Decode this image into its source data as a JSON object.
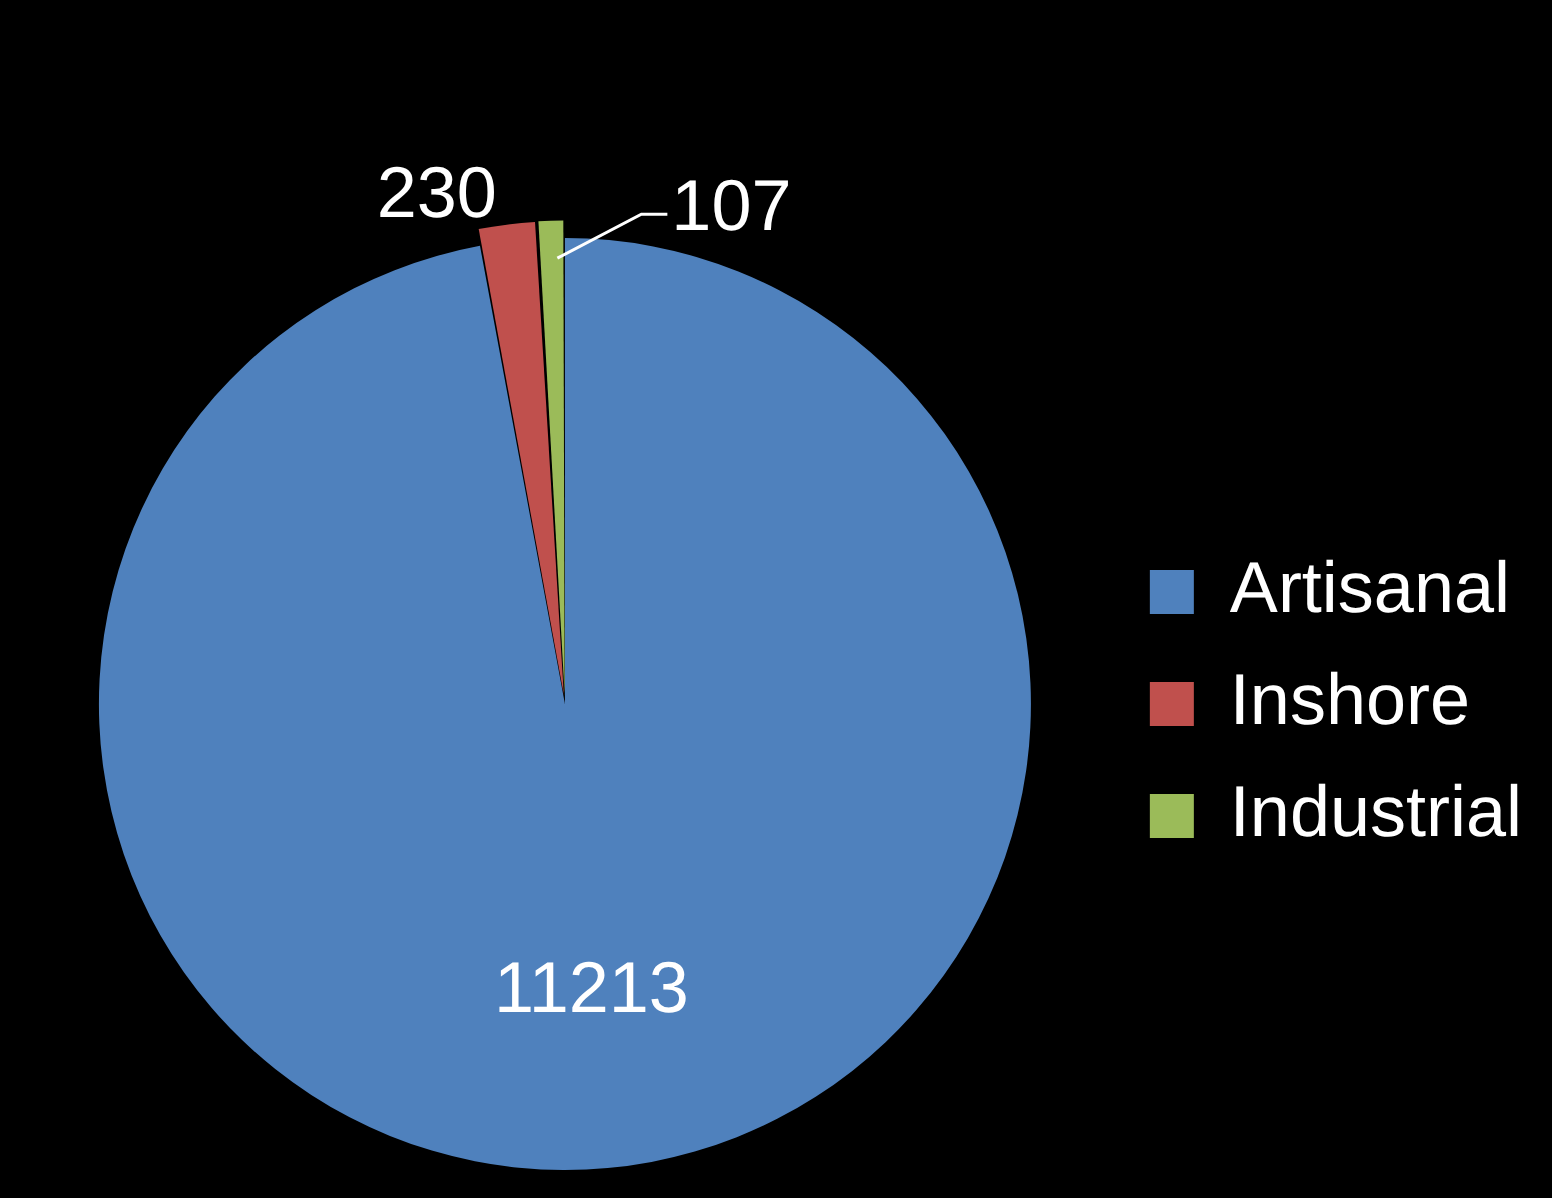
{
  "chart_data": {
    "type": "pie",
    "categories": [
      "Artisanal",
      "Inshore",
      "Industrial"
    ],
    "values": [
      11213,
      230,
      107
    ],
    "colors": [
      "#4f81bd",
      "#c0504d",
      "#9bbb59"
    ],
    "data_labels": true,
    "legend": "right"
  }
}
